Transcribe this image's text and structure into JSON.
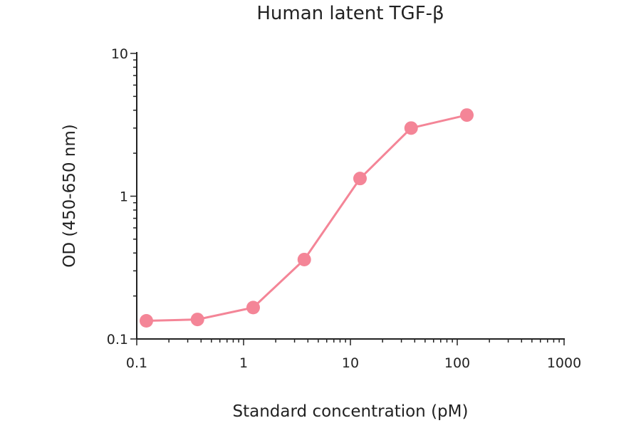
{
  "chart_data": {
    "type": "line",
    "title": "Human latent TGF-β",
    "xlabel": "Standard concentration (pM)",
    "ylabel": "OD (450-650 nm)",
    "x_scale": "log",
    "y_scale": "log",
    "xlim": [
      0.1,
      1000
    ],
    "ylim": [
      0.1,
      10
    ],
    "x_ticks": [
      "0.1",
      "1",
      "10",
      "100",
      "1000"
    ],
    "y_ticks": [
      "0.1",
      "1",
      "10"
    ],
    "grid": false,
    "color": "#f48597",
    "series": [
      {
        "x": [
          0.123,
          0.37,
          1.23,
          3.7,
          12.3,
          37,
          123
        ],
        "y": [
          0.134,
          0.137,
          0.166,
          0.36,
          1.33,
          3.0,
          3.7
        ]
      }
    ]
  }
}
